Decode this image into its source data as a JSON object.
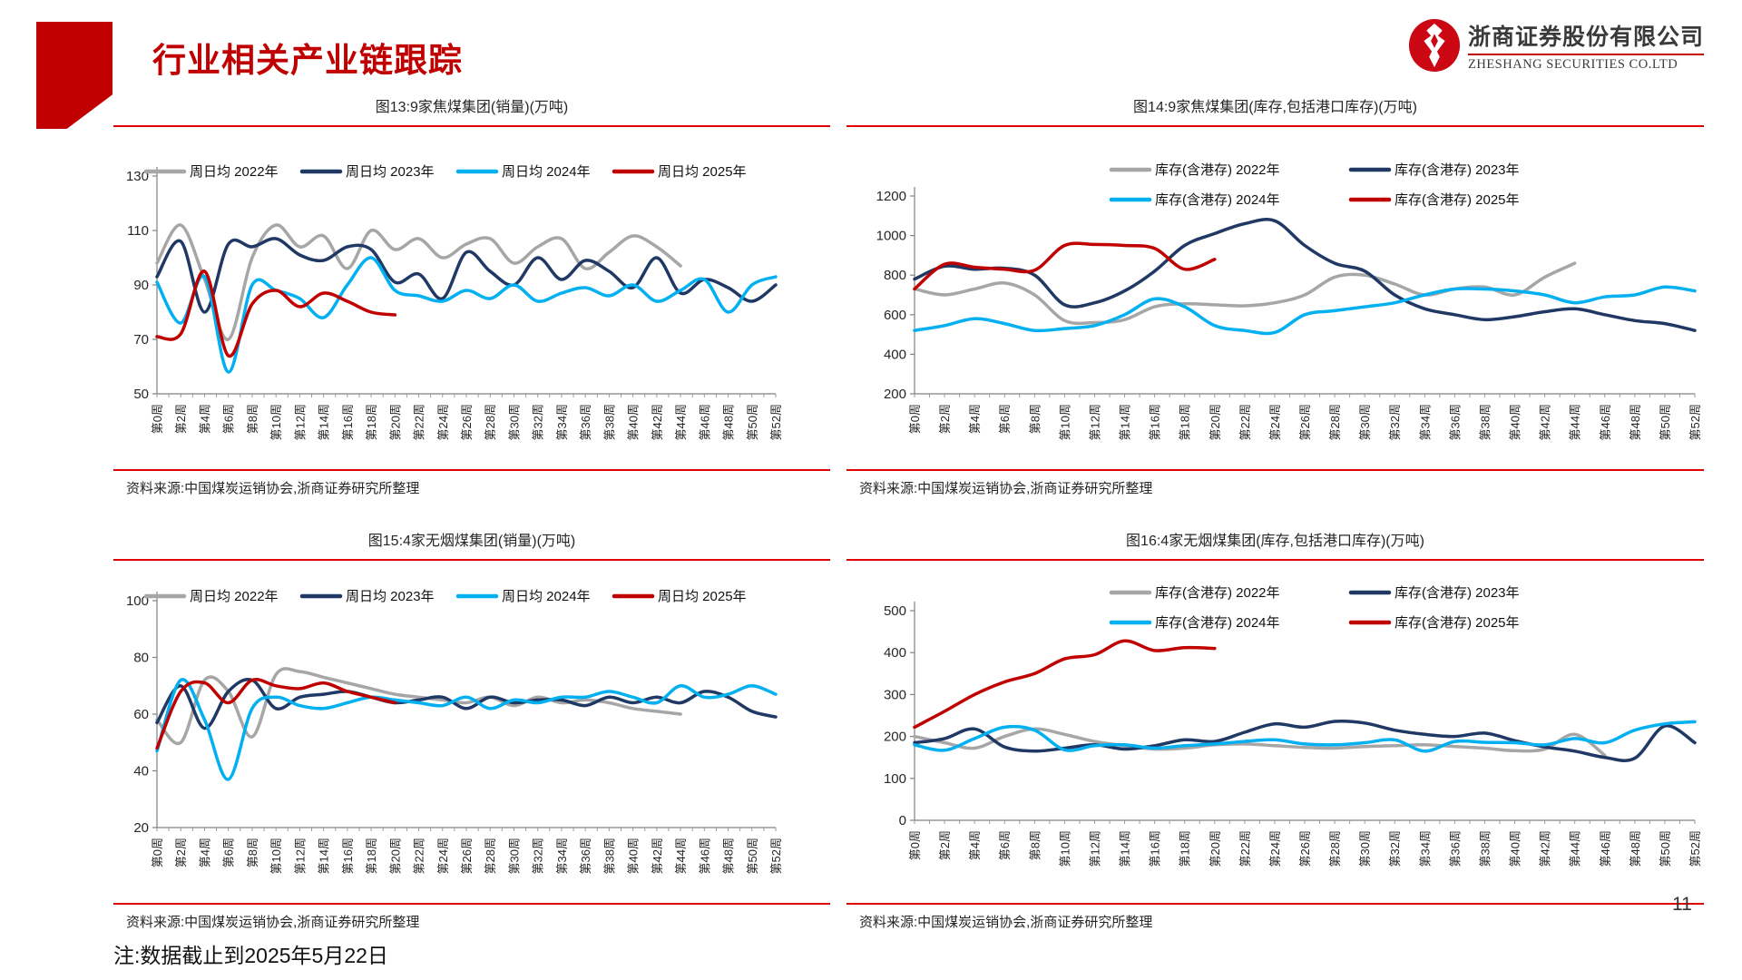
{
  "page": {
    "title": "行业相关产业链跟踪",
    "note": "注:数据截止到2025年5月22日",
    "page_number": "11"
  },
  "logo": {
    "company_cn": "浙商证券股份有限公司",
    "company_en": "ZHESHANG SECURITIES CO.LTD"
  },
  "colors": {
    "accent_red": "#c00000",
    "rule_red": "#e00000",
    "axis_gray": "#808080",
    "series_2022": "#a6a6a6",
    "series_2023": "#1f3864",
    "series_2024": "#00b0f0",
    "series_2025": "#c00000"
  },
  "week_labels": [
    "第0周",
    "第2周",
    "第4周",
    "第6周",
    "第8周",
    "第10周",
    "第12周",
    "第14周",
    "第16周",
    "第18周",
    "第20周",
    "第22周",
    "第24周",
    "第26周",
    "第28周",
    "第30周",
    "第32周",
    "第34周",
    "第36周",
    "第38周",
    "第40周",
    "第42周",
    "第44周",
    "第46周",
    "第48周",
    "第50周",
    "第52周"
  ],
  "chart_data": [
    {
      "id": "fig13",
      "type": "line",
      "title": "图13:9家焦煤集团(销量)(万吨)",
      "source": "资料来源:中国煤炭运销协会,浙商证券研究所整理",
      "ylabel": "万吨",
      "ylim": [
        50,
        130
      ],
      "yticks": [
        50,
        70,
        90,
        110,
        130
      ],
      "x_week_step": 2,
      "legend_position": "top-single-row",
      "grid": false,
      "series": [
        {
          "name": "周日均 2022年",
          "color_key": "series_2022",
          "values": [
            98,
            112,
            92,
            70,
            100,
            112,
            104,
            108,
            96,
            110,
            103,
            107,
            100,
            105,
            107,
            98,
            104,
            107,
            96,
            102,
            108,
            104,
            97,
            null,
            null,
            null,
            null
          ]
        },
        {
          "name": "周日均 2023年",
          "color_key": "series_2023",
          "values": [
            93,
            106,
            80,
            105,
            104,
            107,
            101,
            99,
            104,
            103,
            91,
            94,
            85,
            102,
            95,
            90,
            100,
            92,
            99,
            95,
            89,
            100,
            87,
            92,
            89,
            84,
            90
          ]
        },
        {
          "name": "周日均 2024年",
          "color_key": "series_2024",
          "values": [
            91,
            76,
            93,
            58,
            90,
            88,
            85,
            78,
            90,
            100,
            88,
            86,
            84,
            88,
            85,
            90,
            84,
            87,
            89,
            86,
            90,
            84,
            88,
            92,
            80,
            90,
            93
          ]
        },
        {
          "name": "周日均 2025年",
          "color_key": "series_2025",
          "values": [
            71,
            72,
            95,
            64,
            83,
            88,
            82,
            87,
            84,
            80,
            79,
            null,
            null,
            null,
            null,
            null,
            null,
            null,
            null,
            null,
            null,
            null,
            null,
            null,
            null,
            null,
            null
          ]
        }
      ]
    },
    {
      "id": "fig14",
      "type": "line",
      "title": "图14:9家焦煤集团(库存,包括港口库存)(万吨)",
      "source": "资料来源:中国煤炭运销协会,浙商证券研究所整理",
      "ylabel": "万吨",
      "ylim": [
        200,
        1200
      ],
      "yticks": [
        200,
        400,
        600,
        800,
        1000,
        1200
      ],
      "x_week_step": 2,
      "legend_position": "top-two-rows",
      "grid": false,
      "series": [
        {
          "name": "库存(含港存) 2022年",
          "color_key": "series_2022",
          "values": [
            730,
            700,
            730,
            760,
            700,
            570,
            560,
            575,
            640,
            655,
            650,
            645,
            660,
            700,
            790,
            800,
            755,
            700,
            730,
            740,
            700,
            790,
            860,
            null,
            null,
            null,
            null
          ]
        },
        {
          "name": "库存(含港存) 2023年",
          "color_key": "series_2023",
          "values": [
            780,
            845,
            830,
            835,
            800,
            650,
            660,
            720,
            820,
            950,
            1010,
            1060,
            1075,
            950,
            860,
            820,
            700,
            630,
            600,
            575,
            590,
            615,
            630,
            600,
            570,
            555,
            520
          ]
        },
        {
          "name": "库存(含港存) 2024年",
          "color_key": "series_2024",
          "values": [
            520,
            545,
            580,
            555,
            520,
            530,
            545,
            600,
            680,
            640,
            545,
            520,
            510,
            600,
            620,
            640,
            660,
            700,
            730,
            730,
            720,
            700,
            660,
            690,
            700,
            740,
            720
          ]
        },
        {
          "name": "库存(含港存) 2025年",
          "color_key": "series_2025",
          "values": [
            730,
            855,
            840,
            830,
            825,
            950,
            955,
            950,
            935,
            830,
            880,
            null,
            null,
            null,
            null,
            null,
            null,
            null,
            null,
            null,
            null,
            null,
            null,
            null,
            null,
            null,
            null
          ]
        }
      ]
    },
    {
      "id": "fig15",
      "type": "line",
      "title": "图15:4家无烟煤集团(销量)(万吨)",
      "source": "资料来源:中国煤炭运销协会,浙商证券研究所整理",
      "ylabel": "万吨",
      "ylim": [
        20,
        100
      ],
      "yticks": [
        20,
        40,
        60,
        80,
        100
      ],
      "x_week_step": 2,
      "legend_position": "top-single-row",
      "grid": false,
      "series": [
        {
          "name": "周日均 2022年",
          "color_key": "series_2022",
          "values": [
            58,
            50,
            72,
            68,
            52,
            74,
            75,
            73,
            71,
            69,
            67,
            66,
            65,
            64,
            66,
            63,
            66,
            64,
            65,
            64,
            62,
            61,
            60,
            null,
            null,
            null,
            null
          ]
        },
        {
          "name": "周日均 2023年",
          "color_key": "series_2023",
          "values": [
            57,
            70,
            55,
            68,
            72,
            62,
            66,
            67,
            68,
            66,
            64,
            65,
            66,
            62,
            66,
            64,
            65,
            65,
            63,
            66,
            64,
            66,
            64,
            68,
            66,
            61,
            59
          ]
        },
        {
          "name": "周日均 2024年",
          "color_key": "series_2024",
          "values": [
            47,
            72,
            58,
            37,
            62,
            66,
            63,
            62,
            64,
            66,
            65,
            64,
            63,
            66,
            62,
            65,
            64,
            66,
            66,
            68,
            66,
            64,
            70,
            66,
            67,
            70,
            67
          ]
        },
        {
          "name": "周日均 2025年",
          "color_key": "series_2025",
          "values": [
            48,
            68,
            71,
            64,
            72,
            70,
            69,
            71,
            68,
            66,
            64,
            null,
            null,
            null,
            null,
            null,
            null,
            null,
            null,
            null,
            null,
            null,
            null,
            null,
            null,
            null,
            null
          ]
        }
      ]
    },
    {
      "id": "fig16",
      "type": "line",
      "title": "图16:4家无烟煤集团(库存,包括港口库存)(万吨)",
      "source": "资料来源:中国煤炭运销协会,浙商证券研究所整理",
      "ylabel": "万吨",
      "ylim": [
        0,
        500
      ],
      "yticks": [
        0,
        100,
        200,
        300,
        400,
        500
      ],
      "x_week_step": 2,
      "legend_position": "top-two-rows",
      "grid": false,
      "series": [
        {
          "name": "库存(含港存) 2022年",
          "color_key": "series_2022",
          "values": [
            200,
            185,
            172,
            200,
            218,
            205,
            188,
            178,
            170,
            172,
            180,
            182,
            178,
            174,
            172,
            176,
            178,
            180,
            176,
            172,
            166,
            170,
            205,
            155,
            null,
            null,
            null
          ]
        },
        {
          "name": "库存(含港存) 2023年",
          "color_key": "series_2023",
          "values": [
            185,
            195,
            218,
            175,
            165,
            172,
            180,
            170,
            178,
            192,
            188,
            210,
            230,
            222,
            236,
            232,
            215,
            205,
            200,
            208,
            190,
            175,
            165,
            150,
            148,
            225,
            185
          ]
        },
        {
          "name": "库存(含港存) 2024年",
          "color_key": "series_2024",
          "values": [
            180,
            167,
            195,
            222,
            215,
            168,
            178,
            180,
            172,
            178,
            182,
            188,
            192,
            182,
            180,
            185,
            192,
            165,
            188,
            186,
            185,
            180,
            195,
            185,
            215,
            230,
            235
          ]
        },
        {
          "name": "库存(含港存) 2025年",
          "color_key": "series_2025",
          "values": [
            222,
            260,
            300,
            330,
            350,
            385,
            395,
            428,
            405,
            412,
            410,
            null,
            null,
            null,
            null,
            null,
            null,
            null,
            null,
            null,
            null,
            null,
            null,
            null,
            null,
            null,
            null
          ]
        }
      ]
    }
  ]
}
